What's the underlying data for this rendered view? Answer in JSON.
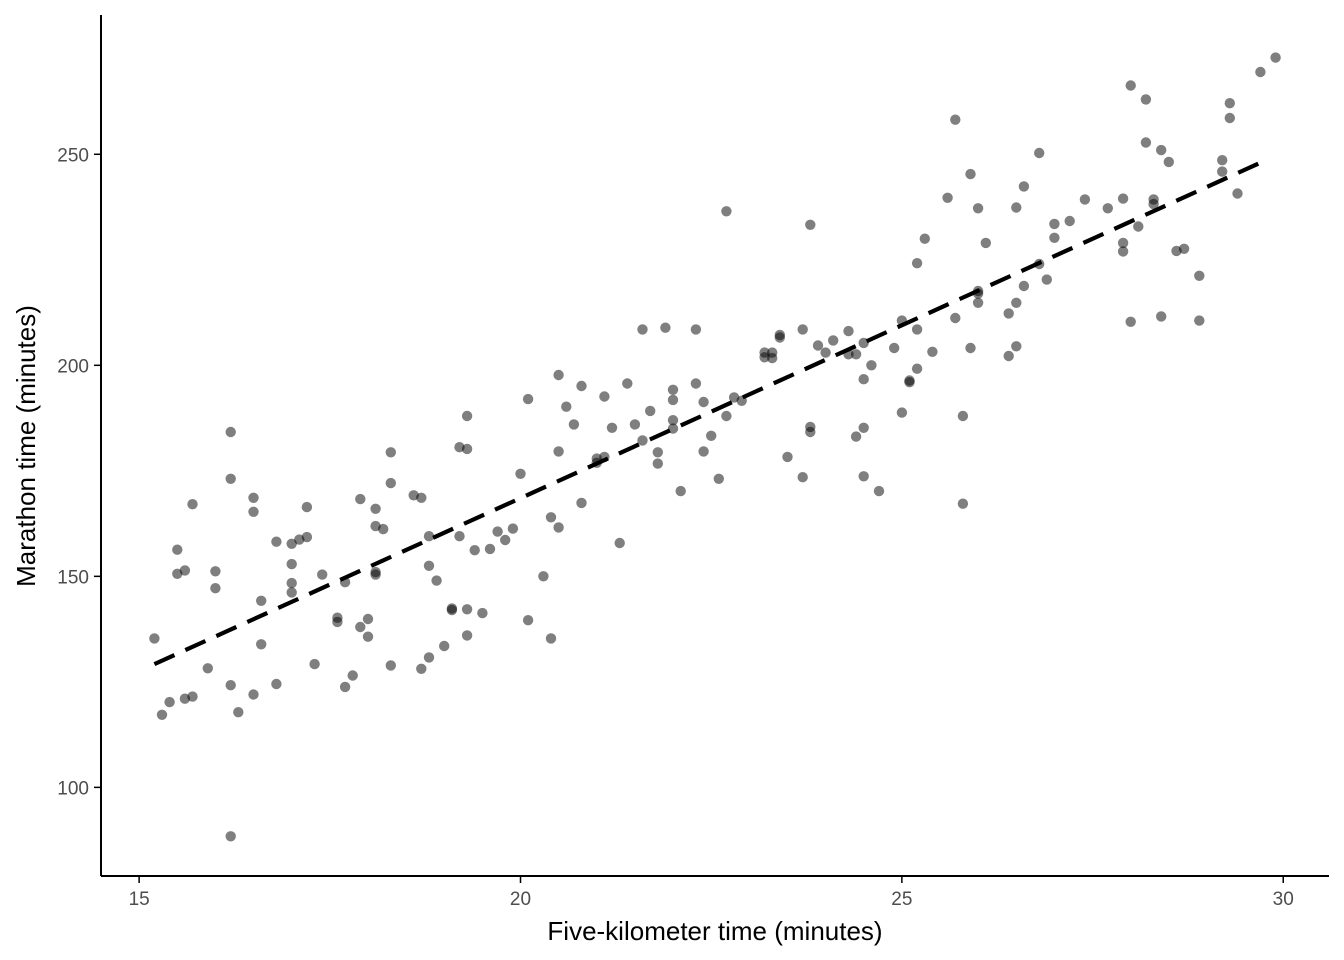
{
  "chart_data": {
    "type": "scatter",
    "xlabel": "Five-kilometer time (minutes)",
    "ylabel": "Marathon time (minutes)",
    "xlim": [
      14.5,
      30.6
    ],
    "ylim": [
      79,
      283
    ],
    "x_ticks": [
      15,
      20,
      25,
      30
    ],
    "y_ticks": [
      100,
      150,
      200,
      250
    ],
    "grid": false,
    "colors": {
      "point": "#000000",
      "point_opacity": 0.5,
      "trend": "#000000"
    },
    "trend_line": {
      "style": "dashed",
      "x": [
        15.2,
        29.7
      ],
      "y": [
        129.2,
        248.0
      ]
    },
    "points": [
      [
        15.2,
        135.3
      ],
      [
        15.3,
        117.2
      ],
      [
        15.4,
        120.2
      ],
      [
        15.5,
        156.3
      ],
      [
        15.5,
        150.6
      ],
      [
        15.6,
        151.4
      ],
      [
        15.6,
        121.0
      ],
      [
        15.7,
        167.1
      ],
      [
        15.7,
        121.5
      ],
      [
        15.9,
        128.2
      ],
      [
        16.0,
        151.2
      ],
      [
        16.0,
        147.2
      ],
      [
        16.2,
        184.2
      ],
      [
        16.2,
        173.1
      ],
      [
        16.2,
        124.2
      ],
      [
        16.2,
        88.4
      ],
      [
        16.3,
        117.8
      ],
      [
        16.5,
        168.6
      ],
      [
        16.5,
        165.3
      ],
      [
        16.5,
        122.0
      ],
      [
        16.6,
        144.2
      ],
      [
        16.6,
        133.9
      ],
      [
        16.8,
        158.2
      ],
      [
        16.8,
        124.5
      ],
      [
        17.0,
        157.7
      ],
      [
        17.0,
        152.9
      ],
      [
        17.0,
        148.4
      ],
      [
        17.0,
        146.2
      ],
      [
        17.1,
        158.7
      ],
      [
        17.2,
        166.4
      ],
      [
        17.2,
        159.3
      ],
      [
        17.3,
        129.2
      ],
      [
        17.4,
        150.4
      ],
      [
        17.6,
        140.2
      ],
      [
        17.6,
        139.2
      ],
      [
        17.7,
        148.6
      ],
      [
        17.7,
        123.8
      ],
      [
        17.8,
        126.5
      ],
      [
        17.9,
        168.3
      ],
      [
        17.9,
        138.0
      ],
      [
        18.0,
        139.9
      ],
      [
        18.0,
        135.7
      ],
      [
        18.1,
        166.0
      ],
      [
        18.1,
        161.9
      ],
      [
        18.1,
        151.0
      ],
      [
        18.1,
        150.4
      ],
      [
        18.2,
        161.2
      ],
      [
        18.3,
        179.4
      ],
      [
        18.3,
        172.1
      ],
      [
        18.3,
        128.9
      ],
      [
        18.6,
        169.2
      ],
      [
        18.7,
        168.6
      ],
      [
        18.7,
        128.1
      ],
      [
        18.8,
        159.5
      ],
      [
        18.8,
        152.5
      ],
      [
        18.8,
        130.8
      ],
      [
        18.9,
        149.0
      ],
      [
        19.0,
        133.5
      ],
      [
        19.1,
        142.4
      ],
      [
        19.1,
        142.0
      ],
      [
        19.2,
        180.6
      ],
      [
        19.2,
        159.5
      ],
      [
        19.3,
        188.0
      ],
      [
        19.3,
        180.2
      ],
      [
        19.3,
        142.2
      ],
      [
        19.3,
        136.0
      ],
      [
        19.4,
        156.2
      ],
      [
        19.5,
        141.3
      ],
      [
        19.6,
        156.5
      ],
      [
        19.7,
        160.6
      ],
      [
        19.8,
        158.6
      ],
      [
        19.9,
        161.3
      ],
      [
        20.0,
        174.3
      ],
      [
        20.1,
        192.0
      ],
      [
        20.1,
        139.6
      ],
      [
        20.3,
        150.0
      ],
      [
        20.4,
        164.0
      ],
      [
        20.4,
        135.3
      ],
      [
        20.5,
        197.7
      ],
      [
        20.5,
        179.6
      ],
      [
        20.5,
        161.6
      ],
      [
        20.6,
        190.2
      ],
      [
        20.7,
        186.0
      ],
      [
        20.8,
        195.1
      ],
      [
        20.8,
        167.4
      ],
      [
        21.0,
        177.9
      ],
      [
        21.0,
        176.9
      ],
      [
        21.1,
        192.6
      ],
      [
        21.1,
        178.3
      ],
      [
        21.2,
        185.2
      ],
      [
        21.3,
        157.9
      ],
      [
        21.4,
        195.7
      ],
      [
        21.5,
        186.0
      ],
      [
        21.6,
        208.5
      ],
      [
        21.6,
        182.2
      ],
      [
        21.7,
        189.2
      ],
      [
        21.8,
        179.4
      ],
      [
        21.8,
        176.7
      ],
      [
        21.9,
        208.9
      ],
      [
        22.0,
        194.2
      ],
      [
        22.0,
        191.8
      ],
      [
        22.0,
        187.0
      ],
      [
        22.0,
        185.0
      ],
      [
        22.1,
        170.2
      ],
      [
        22.3,
        208.5
      ],
      [
        22.3,
        195.7
      ],
      [
        22.4,
        191.3
      ],
      [
        22.4,
        179.6
      ],
      [
        22.5,
        183.3
      ],
      [
        22.6,
        173.1
      ],
      [
        22.7,
        236.5
      ],
      [
        22.7,
        188.0
      ],
      [
        22.8,
        192.4
      ],
      [
        22.9,
        191.6
      ],
      [
        23.2,
        203.0
      ],
      [
        23.2,
        201.9
      ],
      [
        23.3,
        203.0
      ],
      [
        23.3,
        201.7
      ],
      [
        23.4,
        207.2
      ],
      [
        23.4,
        206.6
      ],
      [
        23.5,
        178.3
      ],
      [
        23.7,
        208.5
      ],
      [
        23.7,
        173.5
      ],
      [
        23.8,
        233.3
      ],
      [
        23.8,
        185.4
      ],
      [
        23.8,
        184.2
      ],
      [
        23.9,
        204.7
      ],
      [
        24.0,
        203.0
      ],
      [
        24.1,
        205.9
      ],
      [
        24.3,
        208.1
      ],
      [
        24.3,
        202.6
      ],
      [
        24.4,
        202.6
      ],
      [
        24.4,
        183.1
      ],
      [
        24.5,
        205.3
      ],
      [
        24.5,
        196.7
      ],
      [
        24.5,
        185.2
      ],
      [
        24.5,
        173.7
      ],
      [
        24.6,
        200.0
      ],
      [
        24.7,
        170.2
      ],
      [
        24.9,
        204.1
      ],
      [
        25.0,
        210.6
      ],
      [
        25.0,
        188.8
      ],
      [
        25.1,
        196.0
      ],
      [
        25.1,
        196.4
      ],
      [
        25.2,
        224.2
      ],
      [
        25.2,
        208.5
      ],
      [
        25.2,
        199.2
      ],
      [
        25.3,
        230.0
      ],
      [
        25.4,
        203.2
      ],
      [
        25.6,
        239.7
      ],
      [
        25.7,
        258.2
      ],
      [
        25.7,
        211.2
      ],
      [
        25.8,
        188.0
      ],
      [
        25.8,
        167.2
      ],
      [
        25.9,
        245.3
      ],
      [
        25.9,
        204.1
      ],
      [
        26.0,
        237.2
      ],
      [
        26.0,
        217.6
      ],
      [
        26.0,
        217.0
      ],
      [
        26.0,
        214.8
      ],
      [
        26.1,
        229.0
      ],
      [
        26.4,
        212.3
      ],
      [
        26.4,
        202.2
      ],
      [
        26.5,
        237.4
      ],
      [
        26.5,
        214.8
      ],
      [
        26.5,
        204.5
      ],
      [
        26.6,
        242.4
      ],
      [
        26.6,
        218.8
      ],
      [
        26.8,
        250.3
      ],
      [
        26.8,
        224.0
      ],
      [
        26.9,
        220.3
      ],
      [
        27.0,
        233.5
      ],
      [
        27.0,
        230.2
      ],
      [
        27.2,
        234.2
      ],
      [
        27.4,
        239.3
      ],
      [
        27.7,
        237.2
      ],
      [
        27.9,
        239.5
      ],
      [
        27.9,
        229.0
      ],
      [
        27.9,
        227.0
      ],
      [
        28.0,
        266.3
      ],
      [
        28.0,
        210.3
      ],
      [
        28.1,
        232.9
      ],
      [
        28.2,
        263.0
      ],
      [
        28.2,
        252.8
      ],
      [
        28.3,
        239.3
      ],
      [
        28.3,
        238.2
      ],
      [
        28.4,
        251.0
      ],
      [
        28.4,
        211.6
      ],
      [
        28.5,
        248.2
      ],
      [
        28.6,
        227.1
      ],
      [
        28.7,
        227.6
      ],
      [
        28.9,
        221.2
      ],
      [
        28.9,
        210.6
      ],
      [
        29.2,
        248.6
      ],
      [
        29.2,
        245.9
      ],
      [
        29.3,
        262.1
      ],
      [
        29.3,
        258.6
      ],
      [
        29.4,
        240.7
      ],
      [
        29.7,
        269.5
      ],
      [
        29.9,
        272.9
      ]
    ]
  }
}
